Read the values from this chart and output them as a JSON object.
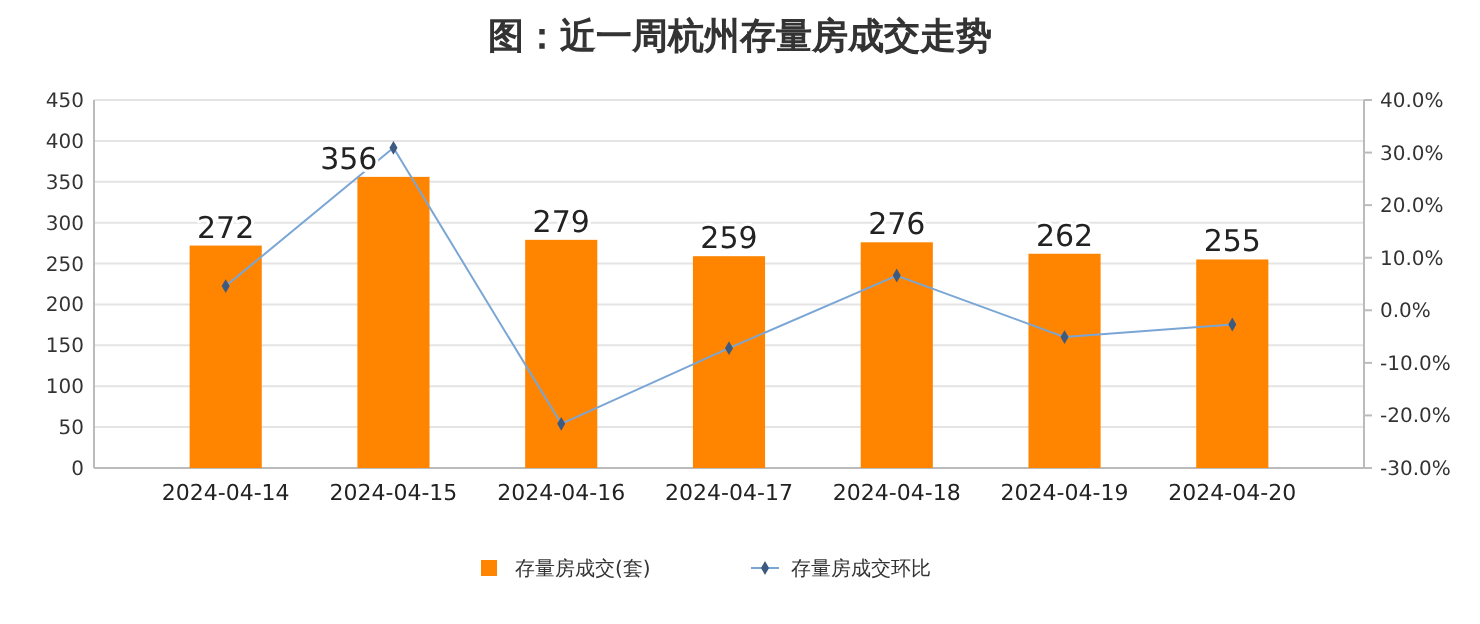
{
  "chart_data": {
    "type": "bar",
    "title": "图：近一周杭州存量房成交走势",
    "categories": [
      "2024-04-14",
      "2024-04-15",
      "2024-04-16",
      "2024-04-17",
      "2024-04-18",
      "2024-04-19",
      "2024-04-20"
    ],
    "series": [
      {
        "name": "存量房成交(套)",
        "color": "#ff8500",
        "values": [
          272,
          356,
          279,
          259,
          276,
          262,
          255
        ],
        "value_labels": [
          "272",
          "356",
          "279",
          "259",
          "276",
          "262",
          "255"
        ]
      },
      {
        "name": "存量房成交环比",
        "type": "line",
        "axis": "y2",
        "color": "#7aa6d6",
        "marker": "diamond",
        "values": [
          4.6,
          30.9,
          -21.6,
          -7.2,
          6.6,
          -5.1,
          -2.7
        ]
      }
    ],
    "ylim": [
      0,
      450
    ],
    "yticks": [
      0,
      50,
      100,
      150,
      200,
      250,
      300,
      350,
      400,
      450
    ],
    "y2lim": [
      -30,
      40
    ],
    "y2ticks": [
      {
        "value": -30,
        "label": "-30.0%"
      },
      {
        "value": -20,
        "label": "-20.0%"
      },
      {
        "value": -10,
        "label": "-10.0%"
      },
      {
        "value": 0,
        "label": "0.0%"
      },
      {
        "value": 10,
        "label": "10.0%"
      },
      {
        "value": 20,
        "label": "20.0%"
      },
      {
        "value": 30,
        "label": "30.0%"
      },
      {
        "value": 40,
        "label": "40.0%"
      }
    ],
    "grid": "y",
    "legend": "bottom"
  }
}
